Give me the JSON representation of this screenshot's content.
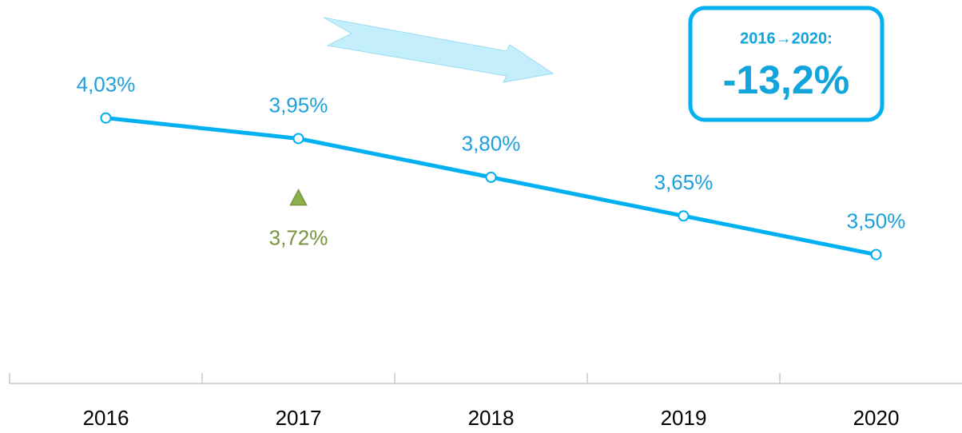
{
  "chart_data": {
    "type": "line",
    "categories": [
      "2016",
      "2017",
      "2018",
      "2019",
      "2020"
    ],
    "series": [
      {
        "color": "#00b0f0",
        "marker": "circle",
        "label_position": "above",
        "values": [
          4.03,
          3.95,
          3.8,
          3.65,
          3.5
        ],
        "value_labels": [
          "4,03%",
          "3,95%",
          "3,80%",
          "3,65%",
          "3,50%"
        ]
      },
      {
        "color": "#77933c",
        "marker": "triangle",
        "label_position": "below",
        "values": [
          null,
          3.72,
          null,
          null,
          null
        ],
        "value_labels": [
          null,
          "3,72%",
          null,
          null,
          null
        ]
      }
    ],
    "ylim": [
      3.0,
      4.5
    ],
    "annotations": [
      "2016→2020:",
      "-13,2%"
    ]
  }
}
